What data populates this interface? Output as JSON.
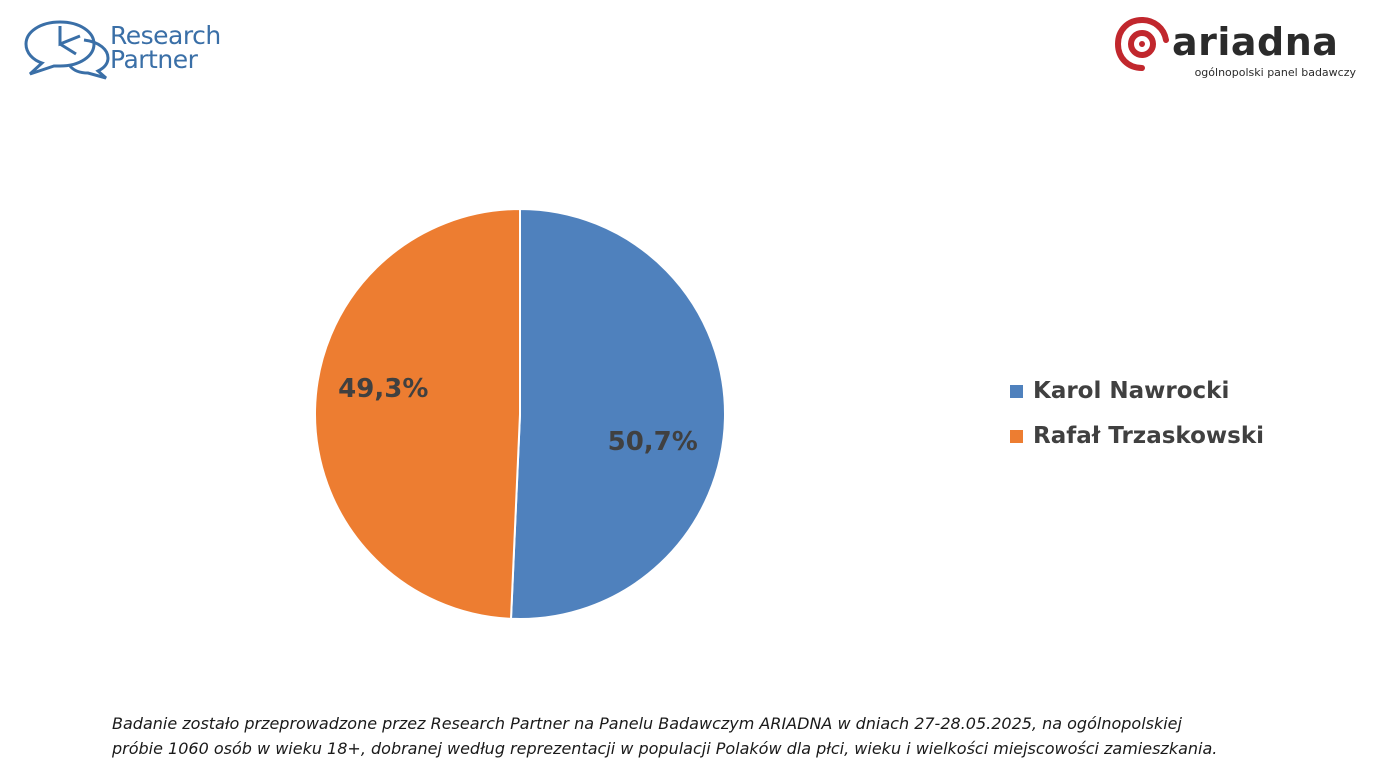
{
  "logos": {
    "research_partner": {
      "line1": "Research",
      "line2": "Partner",
      "color": "#3a6fa7"
    },
    "ariadna": {
      "word": "ariadna",
      "tagline": "ogólnopolski panel badawczy",
      "color": "#c1272d"
    }
  },
  "chart_data": {
    "type": "pie",
    "categories": [
      "Karol Nawrocki",
      "Rafał Trzaskowski"
    ],
    "values": [
      50.7,
      49.3
    ],
    "value_labels": [
      "50,7%",
      "49,3%"
    ],
    "colors": [
      "#4f81bd",
      "#ed7d31"
    ],
    "title": "",
    "legend_position": "right"
  },
  "note": {
    "line1": "Badanie zostało przeprowadzone przez Research Partner na Panelu Badawczym ARIADNA w dniach 27-28.05.2025, na ogólnopolskiej",
    "line2": "próbie 1060 osób w wieku 18+, dobranej według reprezentacji w populacji Polaków dla płci, wieku i wielkości miejscowości zamieszkania."
  }
}
